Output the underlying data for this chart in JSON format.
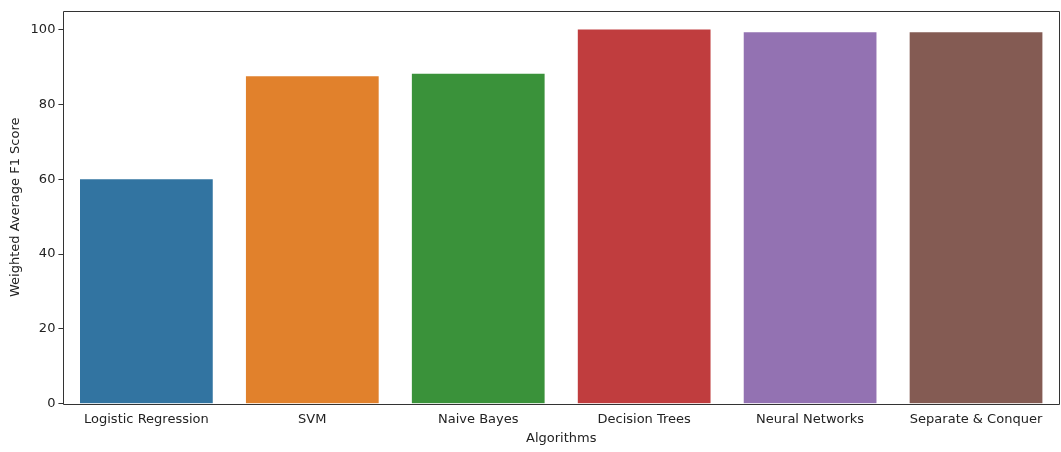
{
  "chart_data": {
    "type": "bar",
    "xlabel": "Algorithms",
    "ylabel": "Weighted Average F1 Score",
    "categories": [
      "Logistic Regression",
      "SVM",
      "Naive Bayes",
      "Decision Trees",
      "Neural Networks",
      "Separate & Conquer"
    ],
    "values": [
      60,
      87.5,
      88.2,
      100,
      99.3,
      99.3
    ],
    "colors": [
      "#3274a1",
      "#e1812c",
      "#3a923a",
      "#c03d3e",
      "#9372b2",
      "#845b53"
    ],
    "ylim": [
      0,
      105
    ],
    "yticks": [
      0,
      20,
      40,
      60,
      80,
      100
    ],
    "grid": false,
    "legend": false
  }
}
